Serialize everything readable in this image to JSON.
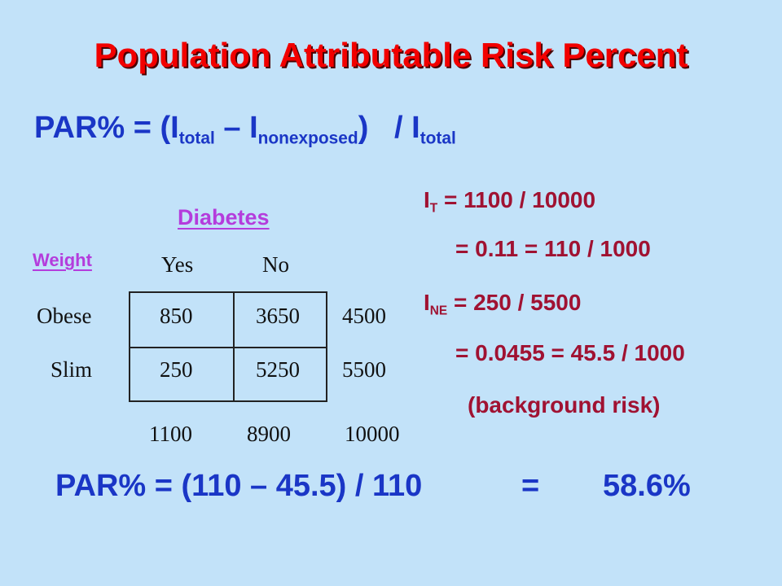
{
  "title": "Population Attributable Risk Percent",
  "formula": {
    "prefix": "PAR% = (I",
    "sub_total": "total",
    "middle": " – I",
    "sub_nonexposed": "nonexposed",
    "suffix": ")   / I",
    "sub_total2": "total"
  },
  "table": {
    "column_group_label": "Diabetes",
    "row_group_label": "Weight",
    "column_headers": [
      "Yes",
      "No"
    ],
    "rows": [
      {
        "label": "Obese",
        "cells": [
          "850",
          "3650"
        ],
        "total": "4500"
      },
      {
        "label": "Slim",
        "cells": [
          "250",
          "5250"
        ],
        "total": "5500"
      }
    ],
    "column_totals": [
      "1100",
      "8900",
      "10000"
    ]
  },
  "calculations": {
    "it_symbol": "I",
    "it_sub": "T",
    "it_expr": " = 1100 / 10000",
    "it_result": "= 0.11 = 110 / 1000",
    "ine_symbol": "I",
    "ine_sub": "NE",
    "ine_expr": " = 250 / 5500",
    "ine_result": "= 0.0455 = 45.5 / 1000",
    "background_note": "(background risk)"
  },
  "result": {
    "expression": "PAR% = (110 – 45.5) / 110",
    "equals": "=",
    "value": "58.6%"
  }
}
